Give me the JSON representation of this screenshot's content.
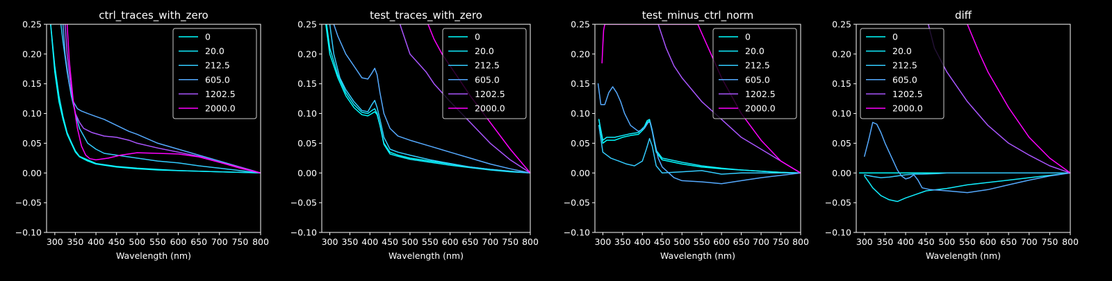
{
  "chart_data": [
    {
      "type": "line",
      "title": "ctrl_traces_with_zero",
      "xlabel": "Wavelength (nm)",
      "ylabel": "",
      "xlim": [
        280,
        800
      ],
      "ylim": [
        -0.1,
        0.25
      ],
      "xticks": [
        300,
        350,
        400,
        450,
        500,
        550,
        600,
        650,
        700,
        750,
        800
      ],
      "yticks": [
        -0.1,
        -0.05,
        0.0,
        0.05,
        0.1,
        0.15,
        0.2,
        0.25
      ],
      "ytick_labels": [
        "−0.10",
        "−0.05",
        "0.00",
        "0.05",
        "0.10",
        "0.15",
        "0.20",
        "0.25"
      ],
      "legend": "top-right",
      "series": [
        {
          "name": "0",
          "color": "#00ffff",
          "x": [
            290,
            300,
            310,
            320,
            330,
            340,
            350,
            360,
            380,
            400,
            450,
            500,
            550,
            600,
            650,
            700,
            750,
            800
          ],
          "y": [
            0.25,
            0.17,
            0.12,
            0.09,
            0.065,
            0.05,
            0.035,
            0.027,
            0.02,
            0.015,
            0.01,
            0.007,
            0.005,
            0.004,
            0.003,
            0.002,
            0.001,
            0.0
          ]
        },
        {
          "name": "20.0",
          "color": "#11eeff",
          "x": [
            290,
            300,
            310,
            320,
            330,
            340,
            350,
            360,
            380,
            400,
            450,
            500,
            550,
            600,
            650,
            700,
            750,
            800
          ],
          "y": [
            0.25,
            0.18,
            0.13,
            0.095,
            0.068,
            0.052,
            0.037,
            0.028,
            0.022,
            0.016,
            0.011,
            0.008,
            0.006,
            0.004,
            0.003,
            0.002,
            0.001,
            0.0
          ]
        },
        {
          "name": "212.5",
          "color": "#33ccff",
          "x": [
            315,
            320,
            330,
            340,
            350,
            360,
            380,
            400,
            420,
            450,
            500,
            550,
            600,
            650,
            700,
            750,
            800
          ],
          "y": [
            0.25,
            0.22,
            0.17,
            0.13,
            0.1,
            0.075,
            0.05,
            0.04,
            0.033,
            0.03,
            0.025,
            0.02,
            0.017,
            0.012,
            0.008,
            0.004,
            0.0
          ]
        },
        {
          "name": "605.0",
          "color": "#55aaff",
          "x": [
            320,
            325,
            335,
            345,
            355,
            365,
            380,
            400,
            420,
            450,
            480,
            500,
            550,
            600,
            650,
            700,
            750,
            800
          ],
          "y": [
            0.25,
            0.2,
            0.15,
            0.12,
            0.108,
            0.104,
            0.1,
            0.095,
            0.09,
            0.08,
            0.07,
            0.065,
            0.05,
            0.04,
            0.03,
            0.02,
            0.01,
            0.0
          ]
        },
        {
          "name": "1202.5",
          "color": "#aa55ff",
          "x": [
            325,
            330,
            340,
            350,
            360,
            370,
            390,
            420,
            450,
            480,
            500,
            550,
            600,
            650,
            700,
            750,
            800
          ],
          "y": [
            0.25,
            0.2,
            0.14,
            0.1,
            0.085,
            0.075,
            0.068,
            0.062,
            0.06,
            0.055,
            0.05,
            0.042,
            0.035,
            0.028,
            0.018,
            0.01,
            0.0
          ]
        },
        {
          "name": "2000.0",
          "color": "#ff00ff",
          "x": [
            330,
            335,
            345,
            355,
            365,
            375,
            385,
            400,
            430,
            460,
            480,
            500,
            550,
            600,
            650,
            700,
            750,
            800
          ],
          "y": [
            0.25,
            0.19,
            0.12,
            0.075,
            0.045,
            0.03,
            0.024,
            0.022,
            0.025,
            0.03,
            0.032,
            0.034,
            0.033,
            0.032,
            0.027,
            0.018,
            0.008,
            0.0
          ]
        }
      ]
    },
    {
      "type": "line",
      "title": "test_traces_with_zero",
      "xlabel": "Wavelength (nm)",
      "ylabel": "",
      "xlim": [
        280,
        800
      ],
      "ylim": [
        -0.1,
        0.25
      ],
      "xticks": [
        300,
        350,
        400,
        450,
        500,
        550,
        600,
        650,
        700,
        750,
        800
      ],
      "yticks": [
        -0.1,
        -0.05,
        0.0,
        0.05,
        0.1,
        0.15,
        0.2,
        0.25
      ],
      "ytick_labels": [
        "−0.10",
        "−0.05",
        "0.00",
        "0.05",
        "0.10",
        "0.15",
        "0.20",
        "0.25"
      ],
      "legend": "top-right",
      "series": [
        {
          "name": "0",
          "color": "#00ffff",
          "x": [
            290,
            300,
            320,
            340,
            360,
            380,
            395,
            405,
            412,
            418,
            425,
            435,
            450,
            470,
            500,
            550,
            600,
            650,
            700,
            750,
            800
          ],
          "y": [
            0.25,
            0.2,
            0.16,
            0.13,
            0.11,
            0.098,
            0.096,
            0.1,
            0.103,
            0.098,
            0.08,
            0.05,
            0.035,
            0.03,
            0.025,
            0.02,
            0.015,
            0.01,
            0.006,
            0.003,
            0.0
          ]
        },
        {
          "name": "20.0",
          "color": "#11eeff",
          "x": [
            292,
            300,
            320,
            340,
            360,
            380,
            395,
            405,
            412,
            418,
            425,
            435,
            450,
            470,
            500,
            550,
            600,
            650,
            700,
            750,
            800
          ],
          "y": [
            0.25,
            0.21,
            0.165,
            0.135,
            0.115,
            0.102,
            0.1,
            0.105,
            0.108,
            0.1,
            0.08,
            0.048,
            0.032,
            0.028,
            0.023,
            0.018,
            0.013,
            0.009,
            0.005,
            0.002,
            0.0
          ]
        },
        {
          "name": "212.5",
          "color": "#33ccff",
          "x": [
            300,
            310,
            325,
            340,
            360,
            380,
            395,
            405,
            412,
            418,
            425,
            435,
            450,
            470,
            500,
            550,
            600,
            650,
            700,
            750,
            800
          ],
          "y": [
            0.25,
            0.2,
            0.16,
            0.14,
            0.12,
            0.105,
            0.103,
            0.115,
            0.122,
            0.11,
            0.09,
            0.06,
            0.04,
            0.035,
            0.03,
            0.022,
            0.016,
            0.01,
            0.006,
            0.003,
            0.0
          ]
        },
        {
          "name": "605.0",
          "color": "#55aaff",
          "x": [
            310,
            320,
            340,
            360,
            380,
            395,
            405,
            412,
            418,
            425,
            435,
            450,
            470,
            500,
            550,
            600,
            650,
            700,
            750,
            800
          ],
          "y": [
            0.25,
            0.23,
            0.2,
            0.18,
            0.16,
            0.158,
            0.168,
            0.176,
            0.165,
            0.135,
            0.1,
            0.075,
            0.062,
            0.055,
            0.045,
            0.035,
            0.025,
            0.015,
            0.007,
            0.0
          ]
        },
        {
          "name": "1202.5",
          "color": "#aa55ff",
          "x": [
            475,
            500,
            520,
            540,
            560,
            600,
            650,
            700,
            750,
            800
          ],
          "y": [
            0.25,
            0.2,
            0.185,
            0.17,
            0.15,
            0.12,
            0.085,
            0.05,
            0.022,
            0.0
          ]
        },
        {
          "name": "2000.0",
          "color": "#ff00ff",
          "x": [
            545,
            560,
            580,
            600,
            620,
            650,
            700,
            750,
            800
          ],
          "y": [
            0.25,
            0.225,
            0.2,
            0.18,
            0.16,
            0.13,
            0.085,
            0.04,
            0.0
          ]
        }
      ]
    },
    {
      "type": "line",
      "title": "test_minus_ctrl_norm",
      "xlabel": "Wavelength (nm)",
      "ylabel": "",
      "xlim": [
        280,
        800
      ],
      "ylim": [
        -0.1,
        0.25
      ],
      "xticks": [
        300,
        350,
        400,
        450,
        500,
        550,
        600,
        650,
        700,
        750,
        800
      ],
      "yticks": [
        -0.1,
        -0.05,
        0.0,
        0.05,
        0.1,
        0.15,
        0.2,
        0.25
      ],
      "ytick_labels": [
        "−0.10",
        "−0.05",
        "0.00",
        "0.05",
        "0.10",
        "0.15",
        "0.20",
        "0.25"
      ],
      "legend": "top-right",
      "series": [
        {
          "name": "0",
          "color": "#00ffff",
          "x": [
            290,
            300,
            310,
            330,
            350,
            370,
            390,
            405,
            412,
            418,
            425,
            435,
            450,
            500,
            550,
            600,
            650,
            700,
            750,
            800
          ],
          "y": [
            0.09,
            0.05,
            0.055,
            0.055,
            0.06,
            0.063,
            0.065,
            0.075,
            0.085,
            0.088,
            0.07,
            0.035,
            0.022,
            0.015,
            0.01,
            0.007,
            0.005,
            0.003,
            0.001,
            0.0
          ]
        },
        {
          "name": "20.0",
          "color": "#11eeff",
          "x": [
            290,
            300,
            310,
            330,
            350,
            370,
            390,
            405,
            412,
            418,
            425,
            435,
            450,
            500,
            550,
            600,
            650,
            700,
            750,
            800
          ],
          "y": [
            0.09,
            0.055,
            0.06,
            0.06,
            0.063,
            0.066,
            0.068,
            0.078,
            0.088,
            0.09,
            0.072,
            0.038,
            0.025,
            0.018,
            0.012,
            0.008,
            0.005,
            0.003,
            0.001,
            0.0
          ]
        },
        {
          "name": "212.5",
          "color": "#33ccff",
          "x": [
            290,
            300,
            320,
            340,
            360,
            380,
            400,
            410,
            418,
            425,
            435,
            450,
            500,
            550,
            600,
            650,
            700,
            750,
            800
          ],
          "y": [
            0.08,
            0.035,
            0.025,
            0.02,
            0.015,
            0.012,
            0.02,
            0.04,
            0.058,
            0.045,
            0.012,
            0.0,
            0.002,
            0.004,
            -0.002,
            0.0,
            0.0,
            0.0,
            0.0
          ]
        },
        {
          "name": "605.0",
          "color": "#55aaff",
          "x": [
            288,
            295,
            305,
            315,
            325,
            335,
            345,
            355,
            370,
            390,
            405,
            415,
            420,
            430,
            440,
            450,
            480,
            500,
            550,
            600,
            650,
            700,
            750,
            800
          ],
          "y": [
            0.15,
            0.115,
            0.115,
            0.135,
            0.145,
            0.135,
            0.12,
            0.1,
            0.08,
            0.07,
            0.075,
            0.085,
            0.085,
            0.055,
            0.025,
            0.01,
            -0.008,
            -0.013,
            -0.015,
            -0.018,
            -0.013,
            -0.008,
            -0.004,
            0.0
          ]
        },
        {
          "name": "1202.5",
          "color": "#aa55ff",
          "x": [
            440,
            460,
            480,
            500,
            550,
            600,
            650,
            700,
            750,
            800
          ],
          "y": [
            0.25,
            0.21,
            0.18,
            0.16,
            0.12,
            0.09,
            0.06,
            0.04,
            0.02,
            0.0
          ]
        },
        {
          "name": "2000.0",
          "color": "#ff00ff",
          "x": [
            298,
            300,
            302,
            305,
            540,
            560,
            600,
            650,
            700,
            750,
            800
          ],
          "y": [
            0.185,
            0.215,
            0.24,
            0.25,
            0.25,
            0.22,
            0.16,
            0.1,
            0.055,
            0.02,
            0.0
          ]
        }
      ]
    },
    {
      "type": "line",
      "title": "diff",
      "xlabel": "Wavelength (nm)",
      "ylabel": "",
      "xlim": [
        280,
        800
      ],
      "ylim": [
        -0.1,
        0.25
      ],
      "xticks": [
        300,
        350,
        400,
        450,
        500,
        550,
        600,
        650,
        700,
        750,
        800
      ],
      "yticks": [
        -0.1,
        -0.05,
        0.0,
        0.05,
        0.1,
        0.15,
        0.2,
        0.25
      ],
      "ytick_labels": [
        "−0.10",
        "−0.05",
        "0.00",
        "0.05",
        "0.10",
        "0.15",
        "0.20",
        "0.25"
      ],
      "legend": "top-left",
      "series": [
        {
          "name": "0",
          "color": "#00ffff",
          "x": [
            288,
            800
          ],
          "y": [
            0.0,
            0.0
          ]
        },
        {
          "name": "20.0",
          "color": "#11eeff",
          "x": [
            300,
            310,
            320,
            340,
            360,
            380,
            400,
            450,
            500,
            550,
            600,
            650,
            700,
            750,
            800
          ],
          "y": [
            -0.005,
            -0.015,
            -0.025,
            -0.038,
            -0.045,
            -0.048,
            -0.042,
            -0.03,
            -0.026,
            -0.02,
            -0.016,
            -0.012,
            -0.008,
            -0.004,
            0.0
          ]
        },
        {
          "name": "212.5",
          "color": "#33ccff",
          "x": [
            300,
            320,
            340,
            360,
            380,
            400,
            420,
            440,
            480,
            500,
            550,
            600,
            650,
            700,
            750,
            800
          ],
          "y": [
            -0.003,
            -0.006,
            -0.008,
            -0.007,
            -0.005,
            -0.003,
            -0.002,
            -0.002,
            -0.001,
            0.0,
            0.0,
            0.0,
            0.0,
            0.0,
            0.0,
            0.0
          ]
        },
        {
          "name": "605.0",
          "color": "#55aaff",
          "x": [
            300,
            310,
            320,
            330,
            340,
            350,
            360,
            370,
            380,
            390,
            400,
            410,
            420,
            430,
            440,
            460,
            500,
            550,
            600,
            650,
            700,
            750,
            800
          ],
          "y": [
            0.028,
            0.055,
            0.085,
            0.082,
            0.068,
            0.05,
            0.035,
            0.02,
            0.005,
            -0.005,
            -0.01,
            -0.008,
            -0.003,
            -0.012,
            -0.025,
            -0.028,
            -0.03,
            -0.033,
            -0.028,
            -0.02,
            -0.012,
            -0.005,
            0.0
          ]
        },
        {
          "name": "1202.5",
          "color": "#aa55ff",
          "x": [
            455,
            470,
            500,
            550,
            600,
            650,
            700,
            750,
            800
          ],
          "y": [
            0.25,
            0.21,
            0.17,
            0.12,
            0.08,
            0.05,
            0.03,
            0.012,
            0.0
          ]
        },
        {
          "name": "2000.0",
          "color": "#ff00ff",
          "x": [
            550,
            580,
            600,
            650,
            700,
            750,
            800
          ],
          "y": [
            0.25,
            0.2,
            0.17,
            0.11,
            0.06,
            0.025,
            0.0
          ]
        }
      ]
    }
  ]
}
